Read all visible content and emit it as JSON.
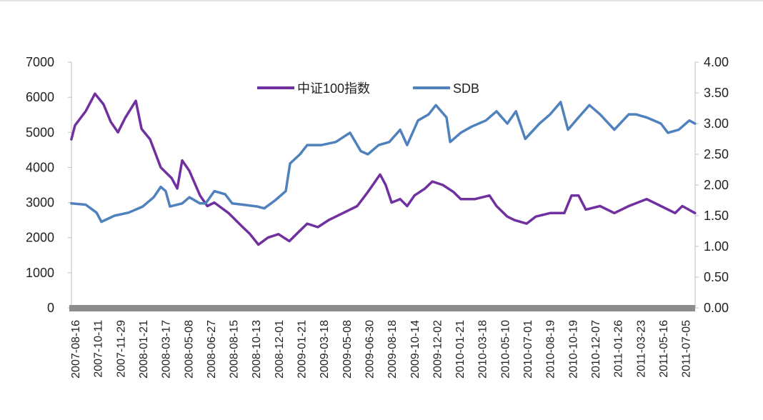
{
  "chart_data": {
    "type": "line",
    "title": "",
    "legend_position": "top-center",
    "categories": [
      "2007-08-16",
      "2007-10-11",
      "2007-11-29",
      "2008-01-21",
      "2008-03-17",
      "2008-05-08",
      "2008-06-27",
      "2008-08-15",
      "2008-10-13",
      "2008-12-01",
      "2009-01-21",
      "2009-03-18",
      "2009-05-08",
      "2009-06-30",
      "2009-08-18",
      "2009-10-14",
      "2009-12-02",
      "2010-01-21",
      "2010-03-18",
      "2010-05-10",
      "2010-07-01",
      "2010-08-19",
      "2010-10-19",
      "2010-12-07",
      "2011-01-26",
      "2011-03-23",
      "2011-05-16",
      "2011-07-05"
    ],
    "xlim": [
      -0.16,
      27.42
    ],
    "y_left": {
      "min": 0,
      "max": 7000,
      "step": 1000,
      "ticks": [
        "0",
        "1000",
        "2000",
        "3000",
        "4000",
        "5000",
        "6000",
        "7000"
      ]
    },
    "y_right": {
      "min": 0,
      "max": 4,
      "step": 0.5,
      "ticks": [
        "0.00",
        "0.50",
        "1.00",
        "1.50",
        "2.00",
        "2.50",
        "3.00",
        "3.50",
        "4.00"
      ]
    },
    "grid": false,
    "series": [
      {
        "name": "中证100指数",
        "axis": "left",
        "color": "#7030a0",
        "points": [
          [
            -0.16,
            4800
          ],
          [
            0,
            5200
          ],
          [
            0.47,
            5600
          ],
          [
            0.88,
            6100
          ],
          [
            1.26,
            5800
          ],
          [
            1.58,
            5300
          ],
          [
            1.9,
            5000
          ],
          [
            2.21,
            5400
          ],
          [
            2.69,
            5900
          ],
          [
            2.94,
            5100
          ],
          [
            3.32,
            4800
          ],
          [
            3.79,
            4000
          ],
          [
            4.27,
            3700
          ],
          [
            4.52,
            3400
          ],
          [
            4.74,
            4200
          ],
          [
            5.06,
            3900
          ],
          [
            5.53,
            3200
          ],
          [
            5.85,
            2900
          ],
          [
            6.16,
            3000
          ],
          [
            6.79,
            2700
          ],
          [
            7.42,
            2300
          ],
          [
            7.74,
            2100
          ],
          [
            8.11,
            1800
          ],
          [
            8.53,
            2000
          ],
          [
            9.0,
            2100
          ],
          [
            9.48,
            1900
          ],
          [
            9.95,
            2200
          ],
          [
            10.27,
            2400
          ],
          [
            10.74,
            2300
          ],
          [
            11.22,
            2500
          ],
          [
            11.85,
            2700
          ],
          [
            12.48,
            2900
          ],
          [
            12.95,
            3300
          ],
          [
            13.49,
            3800
          ],
          [
            13.74,
            3500
          ],
          [
            14.0,
            3000
          ],
          [
            14.38,
            3100
          ],
          [
            14.69,
            2900
          ],
          [
            15.01,
            3200
          ],
          [
            15.48,
            3400
          ],
          [
            15.8,
            3600
          ],
          [
            16.27,
            3500
          ],
          [
            16.74,
            3300
          ],
          [
            17.06,
            3100
          ],
          [
            17.69,
            3100
          ],
          [
            18.33,
            3200
          ],
          [
            18.64,
            2900
          ],
          [
            19.12,
            2600
          ],
          [
            19.43,
            2500
          ],
          [
            19.97,
            2400
          ],
          [
            20.38,
            2600
          ],
          [
            21.01,
            2700
          ],
          [
            21.64,
            2700
          ],
          [
            21.96,
            3200
          ],
          [
            22.27,
            3200
          ],
          [
            22.59,
            2800
          ],
          [
            23.22,
            2900
          ],
          [
            23.85,
            2700
          ],
          [
            24.49,
            2900
          ],
          [
            25.28,
            3100
          ],
          [
            25.91,
            2900
          ],
          [
            26.54,
            2700
          ],
          [
            26.86,
            2900
          ],
          [
            27.42,
            2700
          ]
        ]
      },
      {
        "name": "SDB",
        "axis": "right",
        "color": "#4f81bd",
        "points": [
          [
            -0.16,
            1.7
          ],
          [
            0.47,
            1.68
          ],
          [
            0.95,
            1.55
          ],
          [
            1.17,
            1.4
          ],
          [
            1.74,
            1.5
          ],
          [
            2.37,
            1.55
          ],
          [
            3.0,
            1.65
          ],
          [
            3.48,
            1.8
          ],
          [
            3.79,
            1.97
          ],
          [
            4.01,
            1.9
          ],
          [
            4.2,
            1.65
          ],
          [
            4.74,
            1.7
          ],
          [
            5.06,
            1.8
          ],
          [
            5.53,
            1.7
          ],
          [
            5.78,
            1.7
          ],
          [
            6.16,
            1.9
          ],
          [
            6.64,
            1.85
          ],
          [
            6.95,
            1.7
          ],
          [
            7.42,
            1.68
          ],
          [
            8.06,
            1.65
          ],
          [
            8.37,
            1.62
          ],
          [
            8.85,
            1.75
          ],
          [
            9.32,
            1.9
          ],
          [
            9.51,
            2.35
          ],
          [
            9.95,
            2.5
          ],
          [
            10.27,
            2.65
          ],
          [
            10.9,
            2.65
          ],
          [
            11.53,
            2.7
          ],
          [
            12.16,
            2.85
          ],
          [
            12.64,
            2.55
          ],
          [
            12.95,
            2.5
          ],
          [
            13.43,
            2.65
          ],
          [
            13.9,
            2.7
          ],
          [
            14.38,
            2.9
          ],
          [
            14.69,
            2.65
          ],
          [
            15.17,
            3.05
          ],
          [
            15.64,
            3.15
          ],
          [
            15.96,
            3.3
          ],
          [
            16.43,
            3.1
          ],
          [
            16.59,
            2.7
          ],
          [
            17.06,
            2.85
          ],
          [
            17.54,
            2.95
          ],
          [
            18.17,
            3.05
          ],
          [
            18.64,
            3.2
          ],
          [
            19.12,
            3.0
          ],
          [
            19.5,
            3.2
          ],
          [
            19.91,
            2.75
          ],
          [
            20.54,
            3.0
          ],
          [
            21.01,
            3.15
          ],
          [
            21.48,
            3.35
          ],
          [
            21.8,
            2.9
          ],
          [
            22.27,
            3.1
          ],
          [
            22.75,
            3.3
          ],
          [
            23.22,
            3.15
          ],
          [
            23.85,
            2.9
          ],
          [
            24.49,
            3.15
          ],
          [
            24.8,
            3.15
          ],
          [
            25.28,
            3.1
          ],
          [
            25.91,
            3.0
          ],
          [
            26.22,
            2.85
          ],
          [
            26.7,
            2.9
          ],
          [
            27.17,
            3.05
          ],
          [
            27.42,
            3.0
          ]
        ]
      }
    ],
    "axis_color": "#8c8c8c"
  }
}
